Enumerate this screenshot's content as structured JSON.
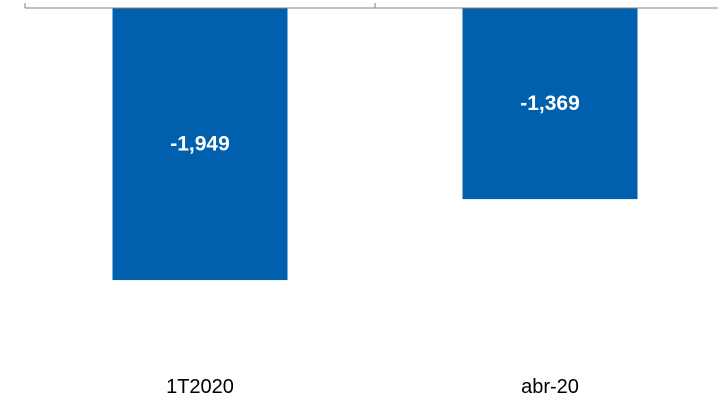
{
  "chart_data": {
    "type": "bar",
    "categories": [
      "1T2020",
      "abr-20"
    ],
    "values": [
      -1949,
      -1369
    ],
    "data_labels": [
      "-1,949",
      "-1,369"
    ],
    "ylim": [
      -2500,
      0
    ],
    "grid": false,
    "bar_color": "#0060AE",
    "axis_color": "#808080",
    "label_color": "#FFFFFF"
  }
}
